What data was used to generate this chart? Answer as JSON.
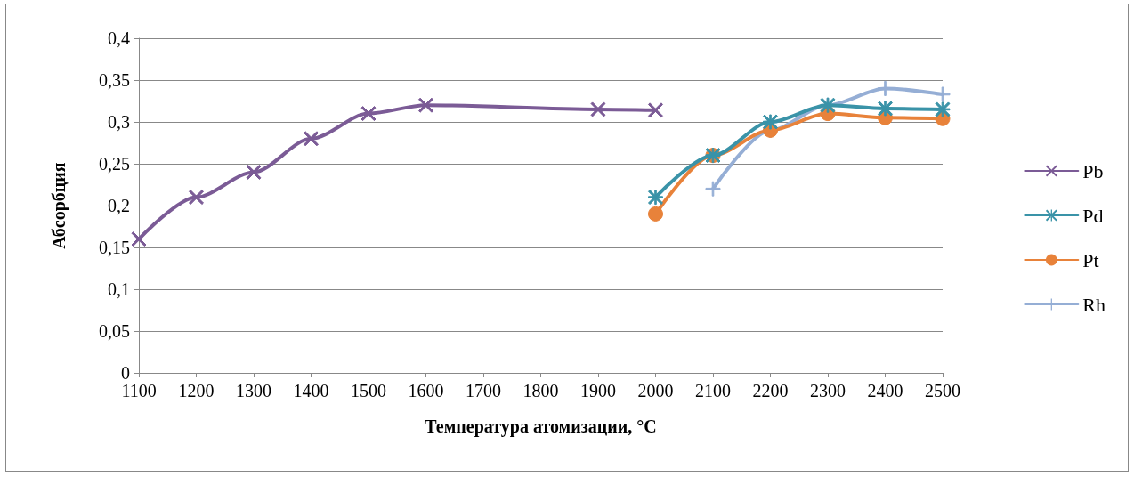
{
  "chart_data": {
    "type": "line",
    "xlabel": "Температура атомизации, °C",
    "ylabel": "Абсорбция",
    "xlim": [
      1100,
      2500
    ],
    "xticks": [
      1100,
      1200,
      1300,
      1400,
      1500,
      1600,
      1700,
      1800,
      1900,
      2000,
      2100,
      2200,
      2300,
      2400,
      2500
    ],
    "ylim": [
      0,
      0.4
    ],
    "yticks": [
      {
        "value": 0,
        "label": "0"
      },
      {
        "value": 0.05,
        "label": "0,05"
      },
      {
        "value": 0.1,
        "label": "0,1"
      },
      {
        "value": 0.15,
        "label": "0,15"
      },
      {
        "value": 0.2,
        "label": "0,2"
      },
      {
        "value": 0.25,
        "label": "0,25"
      },
      {
        "value": 0.3,
        "label": "0,3"
      },
      {
        "value": 0.35,
        "label": "0,35"
      },
      {
        "value": 0.4,
        "label": "0,4"
      }
    ],
    "grid": "y",
    "legend": "right",
    "line_style": "solid",
    "series": [
      {
        "name": "Pb",
        "color": "#7b5b96",
        "marker": "cross",
        "x": [
          1100,
          1200,
          1300,
          1400,
          1500,
          1600,
          1900,
          2000
        ],
        "values": [
          0.16,
          0.21,
          0.24,
          0.28,
          0.31,
          0.32,
          0.315,
          0.314
        ]
      },
      {
        "name": "Pd",
        "color": "#3a93a8",
        "marker": "star",
        "x": [
          2000,
          2100,
          2200,
          2300,
          2400,
          2500
        ],
        "values": [
          0.21,
          0.26,
          0.3,
          0.32,
          0.316,
          0.315
        ]
      },
      {
        "name": "Pt",
        "color": "#e8823a",
        "marker": "circle",
        "x": [
          2000,
          2100,
          2200,
          2300,
          2400,
          2500
        ],
        "values": [
          0.19,
          0.26,
          0.29,
          0.31,
          0.305,
          0.304
        ]
      },
      {
        "name": "Rh",
        "color": "#95aed5",
        "marker": "plus",
        "x": [
          2100,
          2200,
          2300,
          2400,
          2500
        ],
        "values": [
          0.22,
          0.29,
          0.32,
          0.34,
          0.333
        ]
      }
    ]
  }
}
